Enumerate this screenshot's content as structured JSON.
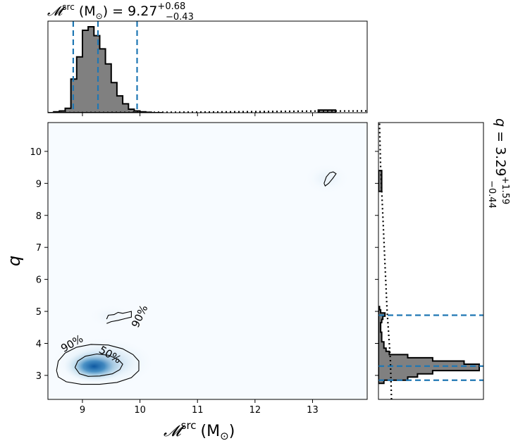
{
  "chart_data": {
    "type": "corner",
    "x_parameter": {
      "label_symbol": "𝓜",
      "label_sup": "src",
      "unit": "(M",
      "unit_sub": "⊙",
      "unit_close": ")",
      "median": "9.27",
      "plus": "+0.68",
      "minus": "−0.43",
      "title_eq": " = ",
      "xlim": [
        8.4,
        13.95
      ],
      "ticks": [
        "9",
        "10",
        "11",
        "12",
        "13"
      ],
      "tick_values": [
        9,
        10,
        11,
        12,
        13
      ],
      "credible_lines": [
        8.84,
        9.27,
        9.95
      ]
    },
    "y_parameter": {
      "label": "q",
      "median": "3.29",
      "plus": "+1.59",
      "minus": "−0.44",
      "ylim": [
        2.25,
        10.9
      ],
      "ticks": [
        "3",
        "4",
        "5",
        "6",
        "7",
        "8",
        "9",
        "10"
      ],
      "tick_values": [
        3,
        4,
        5,
        6,
        7,
        8,
        9,
        10
      ],
      "credible_lines": [
        2.85,
        3.29,
        4.88
      ]
    },
    "marginal_x_hist": {
      "bin_edges": [
        8.4,
        8.5,
        8.6,
        8.7,
        8.8,
        8.9,
        9.0,
        9.1,
        9.2,
        9.3,
        9.4,
        9.5,
        9.6,
        9.7,
        9.8,
        9.9,
        10.0,
        10.1,
        10.2,
        10.3,
        10.4
      ],
      "counts": [
        0.0,
        0.01,
        0.02,
        0.05,
        0.38,
        0.63,
        0.93,
        0.97,
        0.87,
        0.72,
        0.55,
        0.34,
        0.19,
        0.1,
        0.04,
        0.02,
        0.01,
        0.005,
        0.0,
        0.0
      ],
      "tail": [
        [
          12.8,
          13.1,
          0.0
        ],
        [
          13.1,
          13.4,
          0.03
        ],
        [
          13.4,
          13.95,
          0.0
        ]
      ],
      "prior_line": [
        [
          8.4,
          0.0
        ],
        [
          10.0,
          0.004
        ],
        [
          11.0,
          0.006
        ],
        [
          12.0,
          0.012
        ],
        [
          13.0,
          0.018
        ],
        [
          13.95,
          0.02
        ]
      ]
    },
    "marginal_y_hist": {
      "bin_edges": [
        2.75,
        2.85,
        2.95,
        3.05,
        3.15,
        3.25,
        3.35,
        3.45,
        3.55,
        3.65,
        3.75,
        3.85,
        3.95,
        4.05,
        4.15,
        4.25,
        4.35,
        4.45,
        4.55,
        4.65,
        4.75,
        4.85,
        4.95,
        5.05,
        5.15
      ],
      "counts": [
        0.05,
        0.27,
        0.36,
        0.5,
        0.93,
        0.93,
        0.79,
        0.5,
        0.27,
        0.1,
        0.07,
        0.05,
        0.05,
        0.03,
        0.03,
        0.03,
        0.02,
        0.02,
        0.02,
        0.03,
        0.04,
        0.06,
        0.02,
        0.01
      ],
      "tail": [
        [
          8.75,
          9.4,
          0.03
        ]
      ],
      "prior_line": [
        [
          2.25,
          0.12
        ],
        [
          3.5,
          0.11
        ],
        [
          5.0,
          0.08
        ],
        [
          6.5,
          0.06
        ],
        [
          8.0,
          0.04
        ],
        [
          9.5,
          0.02
        ],
        [
          10.9,
          0.01
        ]
      ]
    },
    "density_blobs": [
      {
        "x": 9.2,
        "y": 3.28,
        "sx": 0.33,
        "sy": 0.3,
        "w": 1.0
      },
      {
        "x": 9.35,
        "y": 3.4,
        "sx": 0.55,
        "sy": 0.48,
        "w": 0.25
      },
      {
        "x": 9.5,
        "y": 4.85,
        "sx": 0.25,
        "sy": 0.22,
        "w": 0.04
      },
      {
        "x": 13.25,
        "y": 9.15,
        "sx": 0.25,
        "sy": 0.3,
        "w": 0.05
      }
    ],
    "contours": [
      {
        "label": "50%",
        "points": [
          [
            8.87,
            3.25
          ],
          [
            8.92,
            3.45
          ],
          [
            9.05,
            3.6
          ],
          [
            9.25,
            3.67
          ],
          [
            9.45,
            3.63
          ],
          [
            9.62,
            3.5
          ],
          [
            9.7,
            3.35
          ],
          [
            9.65,
            3.18
          ],
          [
            9.52,
            3.05
          ],
          [
            9.3,
            2.98
          ],
          [
            9.1,
            2.97
          ],
          [
            8.95,
            3.05
          ],
          [
            8.87,
            3.25
          ]
        ]
      },
      {
        "label": "90%",
        "points": [
          [
            8.55,
            3.15
          ],
          [
            8.58,
            3.45
          ],
          [
            8.7,
            3.7
          ],
          [
            8.9,
            3.88
          ],
          [
            9.15,
            3.97
          ],
          [
            9.45,
            3.95
          ],
          [
            9.7,
            3.83
          ],
          [
            9.88,
            3.65
          ],
          [
            9.98,
            3.45
          ],
          [
            9.98,
            3.15
          ],
          [
            9.85,
            2.93
          ],
          [
            9.6,
            2.78
          ],
          [
            9.3,
            2.72
          ],
          [
            8.98,
            2.72
          ],
          [
            8.72,
            2.8
          ],
          [
            8.58,
            2.95
          ],
          [
            8.55,
            3.15
          ]
        ]
      },
      {
        "label": "90%",
        "points": [
          [
            9.42,
            4.76
          ],
          [
            9.45,
            4.88
          ],
          [
            9.55,
            4.9
          ],
          [
            9.62,
            4.97
          ],
          [
            9.7,
            4.94
          ],
          [
            9.8,
            4.98
          ],
          [
            9.85,
            5.0
          ],
          [
            9.85,
            4.82
          ],
          [
            9.75,
            4.78
          ],
          [
            9.62,
            4.72
          ],
          [
            9.5,
            4.68
          ],
          [
            9.42,
            4.62
          ]
        ]
      },
      {
        "label": "",
        "points": [
          [
            13.2,
            9.0
          ],
          [
            13.24,
            9.2
          ],
          [
            13.3,
            9.33
          ],
          [
            13.36,
            9.36
          ],
          [
            13.41,
            9.3
          ],
          [
            13.35,
            9.15
          ],
          [
            13.28,
            9.0
          ],
          [
            13.22,
            8.92
          ],
          [
            13.2,
            9.0
          ]
        ]
      }
    ],
    "contour_labels": [
      {
        "text": "50%",
        "x": 9.45,
        "y": 3.55,
        "angle": 30
      },
      {
        "text": "90%",
        "x": 8.85,
        "y": 3.9,
        "angle": -30
      },
      {
        "text": "90%",
        "x": 10.05,
        "y": 4.8,
        "angle": -65
      }
    ],
    "colors": {
      "credible": "#1f77b4",
      "hist_fill": "#808080",
      "density_light": "#f7fbff",
      "density_dark": "#08519c"
    }
  }
}
